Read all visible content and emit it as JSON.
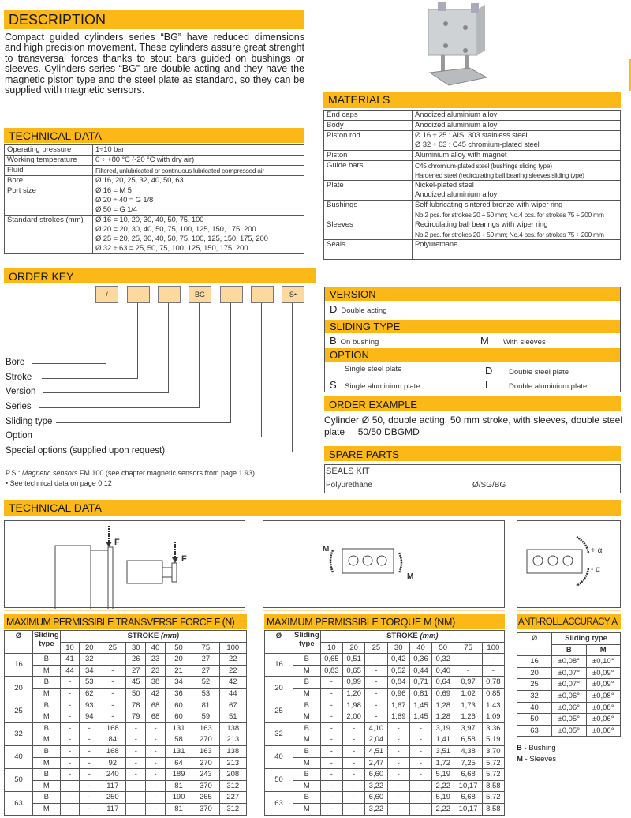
{
  "colors": {
    "accent": "#FBB817",
    "key_box": "#FDD9A0"
  },
  "description": {
    "title": "DESCRIPTION",
    "text": "Compact guided cylinders series “BG” have reduced dimensions and high precision movement. These cylinders assure great strenght to transversal forces thanks to stout bars guided on bushings or sleeves. Cylinders series “BG” are double acting and they have the magnetic piston type and the steel plate as standard, so they can be supplied with magnetic sensors."
  },
  "technical_data": {
    "title": "TECHNICAL DATA",
    "rows": [
      {
        "k": "Operating pressure",
        "v": [
          "1÷10 bar"
        ]
      },
      {
        "k": "Working temperature",
        "v": [
          "0 ÷ +80 °C (-20 °C with dry air)"
        ]
      },
      {
        "k": "Fluid",
        "v": [
          "Filtered, unlubricated or continuous lubricated compressed air"
        ]
      },
      {
        "k": "Bore",
        "v": [
          "Ø 16, 20, 25, 32, 40, 50, 63"
        ]
      },
      {
        "k": "Port size",
        "v": [
          "Ø 16 = M 5",
          "Ø 20 ÷ 40 = G 1/8",
          "Ø 50 = G 1/4"
        ]
      },
      {
        "k": "Standard strokes (mm)",
        "v": [
          "Ø 16 = 10, 20, 30, 40, 50, 75, 100",
          "Ø 20 = 20, 30, 40, 50, 75, 100, 125, 150, 175, 200",
          "Ø 25 = 20, 25, 30, 40, 50, 75, 100, 125, 150, 175, 200",
          "Ø 32 ÷ 63 = 25, 50, 75, 100, 125, 150, 175, 200"
        ]
      }
    ]
  },
  "materials": {
    "title": "MATERIALS",
    "rows": [
      {
        "k": "End caps",
        "v": [
          "Anodized aluminium alloy"
        ]
      },
      {
        "k": "Body",
        "v": [
          "Anodized aluminium alloy"
        ]
      },
      {
        "k": "Piston rod",
        "v": [
          "Ø 16 ÷ 25 : AISI 303 stainless steel",
          "Ø 32 ÷ 63 : C45 chromium-plated steel"
        ]
      },
      {
        "k": "Piston",
        "v": [
          "Aluminium alloy with magnet"
        ]
      },
      {
        "k": "Guide bars",
        "v": [
          "C45 chromium-plated steel (bushings sliding type)",
          "Hardened steel (recirculating ball bearing sleeves sliding type)"
        ]
      },
      {
        "k": "Plate",
        "v": [
          "Nickel-plated steel",
          "Anodized aluminium alloy"
        ]
      },
      {
        "k": "Bushings",
        "v": [
          "Self-lubricating sintered bronze with wiper ring",
          "No.2 pcs. for strokes 20 ÷ 50 mm; No.4 pcs. for strokes 75 ÷ 200 mm"
        ]
      },
      {
        "k": "Sleeves",
        "v": [
          "Recirculating ball bearings with wiper ring",
          "No.2 pcs. for strokes 20 ÷ 50 mm; No.4 pcs. for strokes 75 ÷ 200 mm"
        ]
      },
      {
        "k": "Seals",
        "v": [
          "Polyurethane",
          ""
        ]
      }
    ]
  },
  "order_key": {
    "title": "ORDER KEY",
    "boxes": [
      "/",
      "",
      "",
      "BG",
      "",
      "",
      "S•"
    ],
    "labels": [
      "Bore",
      "Stroke",
      "Version",
      "Series",
      "Sliding type",
      "Option",
      "Special options (supplied upon request)"
    ],
    "ps_prefix": "P.S.:",
    "ps_italic": "Magnetic sensors",
    "ps_rest": " FM 100  (see chapter magnetic sensors from page 1.93)",
    "note": "• See technical data on page 0.12"
  },
  "version": {
    "title": "VERSION",
    "items": [
      {
        "code": "D",
        "label": "Double acting"
      }
    ]
  },
  "sliding_type": {
    "title": "SLIDING TYPE",
    "items": [
      {
        "code": "B",
        "label": "On bushing"
      },
      {
        "code": "M",
        "label": "With sleeves"
      }
    ]
  },
  "option": {
    "title": "OPTION",
    "items": [
      {
        "code": "",
        "label": "Single steel plate"
      },
      {
        "code": "D",
        "label": "Double steel plate"
      },
      {
        "code": "S",
        "label": "Single aluminium plate"
      },
      {
        "code": "L",
        "label": "Double aluminium plate"
      }
    ]
  },
  "order_example": {
    "title": "ORDER EXAMPLE",
    "text": "Cylinder Ø 50, double acting, 50 mm stroke, with sleeves, double steel plate",
    "code": "50/50 DBGMD"
  },
  "spare_parts": {
    "title": "SPARE PARTS",
    "kit": "SEALS KIT",
    "item": "Polyurethane",
    "code": "Ø/SG/BG"
  },
  "tech_diagrams": {
    "title": "TECHNICAL DATA",
    "force_label": "F",
    "torque_label": "M",
    "plus_alpha": "+ α",
    "minus_alpha": "- α"
  },
  "transverse_force": {
    "title": "MAXIMUM PERMISSIBLE TRANSVERSE FORCE F (N)",
    "h_bore": "Ø",
    "h_type": "Sliding type",
    "h_stroke": "STROKE",
    "h_unit": "(mm)",
    "strokes": [
      "10",
      "20",
      "25",
      "30",
      "40",
      "50",
      "75",
      "100"
    ],
    "rows": [
      {
        "bore": "16",
        "B": [
          "41",
          "32",
          "-",
          "26",
          "23",
          "20",
          "27",
          "22"
        ],
        "M": [
          "44",
          "34",
          "-",
          "27",
          "23",
          "21",
          "27",
          "22"
        ]
      },
      {
        "bore": "20",
        "B": [
          "-",
          "53",
          "-",
          "45",
          "38",
          "34",
          "52",
          "42"
        ],
        "M": [
          "-",
          "62",
          "-",
          "50",
          "42",
          "36",
          "53",
          "44"
        ]
      },
      {
        "bore": "25",
        "B": [
          "-",
          "93",
          "-",
          "78",
          "68",
          "60",
          "81",
          "67"
        ],
        "M": [
          "-",
          "94",
          "-",
          "79",
          "68",
          "60",
          "59",
          "51"
        ]
      },
      {
        "bore": "32",
        "B": [
          "-",
          "-",
          "168",
          "-",
          "-",
          "131",
          "163",
          "138"
        ],
        "M": [
          "-",
          "-",
          "84",
          "-",
          "-",
          "58",
          "270",
          "213"
        ]
      },
      {
        "bore": "40",
        "B": [
          "-",
          "-",
          "168",
          "-",
          "-",
          "131",
          "163",
          "138"
        ],
        "M": [
          "-",
          "-",
          "92",
          "-",
          "-",
          "64",
          "270",
          "213"
        ]
      },
      {
        "bore": "50",
        "B": [
          "-",
          "-",
          "240",
          "-",
          "-",
          "189",
          "243",
          "208"
        ],
        "M": [
          "-",
          "-",
          "117",
          "-",
          "-",
          "81",
          "370",
          "312"
        ]
      },
      {
        "bore": "63",
        "B": [
          "-",
          "-",
          "250",
          "-",
          "-",
          "190",
          "265",
          "227"
        ],
        "M": [
          "-",
          "-",
          "117",
          "-",
          "-",
          "81",
          "370",
          "312"
        ]
      }
    ]
  },
  "torque": {
    "title": "MAXIMUM PERMISSIBLE TORQUE M (Nm)",
    "h_bore": "Ø",
    "h_type": "Sliding type",
    "h_stroke": "STROKE",
    "h_unit": "(mm)",
    "strokes": [
      "10",
      "20",
      "25",
      "30",
      "40",
      "50",
      "75",
      "100"
    ],
    "rows": [
      {
        "bore": "16",
        "B": [
          "0,65",
          "0,51",
          "-",
          "0,42",
          "0,36",
          "0,32",
          "-",
          "-"
        ],
        "M": [
          "0,83",
          "0,65",
          "-",
          "0,52",
          "0,44",
          "0,40",
          "-",
          "-"
        ]
      },
      {
        "bore": "20",
        "B": [
          "-",
          "0,99",
          "-",
          "0,84",
          "0,71",
          "0,64",
          "0,97",
          "0,78"
        ],
        "M": [
          "-",
          "1,20",
          "-",
          "0,96",
          "0,81",
          "0,69",
          "1,02",
          "0,85"
        ]
      },
      {
        "bore": "25",
        "B": [
          "-",
          "1,98",
          "-",
          "1,67",
          "1,45",
          "1,28",
          "1,73",
          "1,43"
        ],
        "M": [
          "-",
          "2,00",
          "-",
          "1,69",
          "1,45",
          "1,28",
          "1,26",
          "1,09"
        ]
      },
      {
        "bore": "32",
        "B": [
          "-",
          "-",
          "4,10",
          "-",
          "-",
          "3,19",
          "3,97",
          "3,36"
        ],
        "M": [
          "-",
          "-",
          "2,04",
          "-",
          "-",
          "1,41",
          "6,58",
          "5,19"
        ]
      },
      {
        "bore": "40",
        "B": [
          "-",
          "-",
          "4,51",
          "-",
          "-",
          "3,51",
          "4,38",
          "3,70"
        ],
        "M": [
          "-",
          "-",
          "2,47",
          "-",
          "-",
          "1,72",
          "7,25",
          "5,72"
        ]
      },
      {
        "bore": "50",
        "B": [
          "-",
          "-",
          "6,60",
          "-",
          "-",
          "5,19",
          "6,68",
          "5,72"
        ],
        "M": [
          "-",
          "-",
          "3,22",
          "-",
          "-",
          "2,22",
          "10,17",
          "8,58"
        ]
      },
      {
        "bore": "63",
        "B": [
          "-",
          "-",
          "6,60",
          "-",
          "-",
          "5,19",
          "6,68",
          "5,72"
        ],
        "M": [
          "-",
          "-",
          "3,22",
          "-",
          "-",
          "2,22",
          "10,17",
          "8,58"
        ]
      }
    ]
  },
  "anti_roll": {
    "title": "ANTI-ROLL ACCURACY α",
    "h_bore": "Ø",
    "h_type": "Sliding type",
    "h_b": "B",
    "h_m": "M",
    "rows": [
      [
        "16",
        "±0,08°",
        "±0,10°"
      ],
      [
        "20",
        "±0,07°",
        "±0,09°"
      ],
      [
        "25",
        "±0,07°",
        "±0,09°"
      ],
      [
        "32",
        "±0,06°",
        "±0,08°"
      ],
      [
        "40",
        "±0,06°",
        "±0,08°"
      ],
      [
        "50",
        "±0,05°",
        "±0,06°"
      ],
      [
        "63",
        "±0,05°",
        "±0,06°"
      ]
    ],
    "legend": [
      {
        "code": "B",
        "label": " - Bushing"
      },
      {
        "code": "M",
        "label": " - Sleeves"
      }
    ]
  }
}
